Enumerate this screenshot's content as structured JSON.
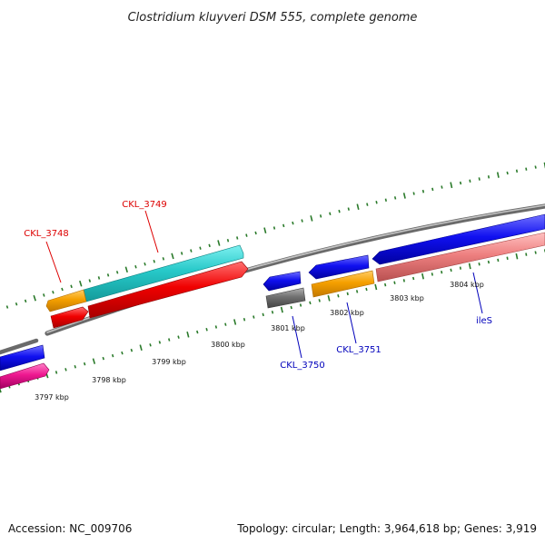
{
  "title": "Clostridium kluyveri DSM 555, complete genome",
  "accession": "Accession: NC_009706",
  "summary": "Topology: circular; Length: 3,964,618 bp; Genes: 3,919",
  "scale_labels": [
    "3797 kbp",
    "3798 kbp",
    "3799 kbp",
    "3800 kbp",
    "3801 kbp",
    "3802 kbp",
    "3803 kbp",
    "3804 kbp"
  ],
  "gene_labels": {
    "ckl_3748": "CKL_3748",
    "ckl_3749": "CKL_3749",
    "ckl_3750": "CKL_3750",
    "ckl_3751": "CKL_3751",
    "iles": "ileS"
  },
  "colors": {
    "backbone": "#888888",
    "tick": "#2a7a2a",
    "forward_label": "#dd0000",
    "reverse_label": "#0000bb",
    "cyan": "#27c9c9",
    "orange": "#f5a000",
    "red": "#f00000",
    "blue": "#1010f0",
    "gray": "#707070",
    "pink": "#ee7e7e",
    "magenta": "#ee1890"
  }
}
